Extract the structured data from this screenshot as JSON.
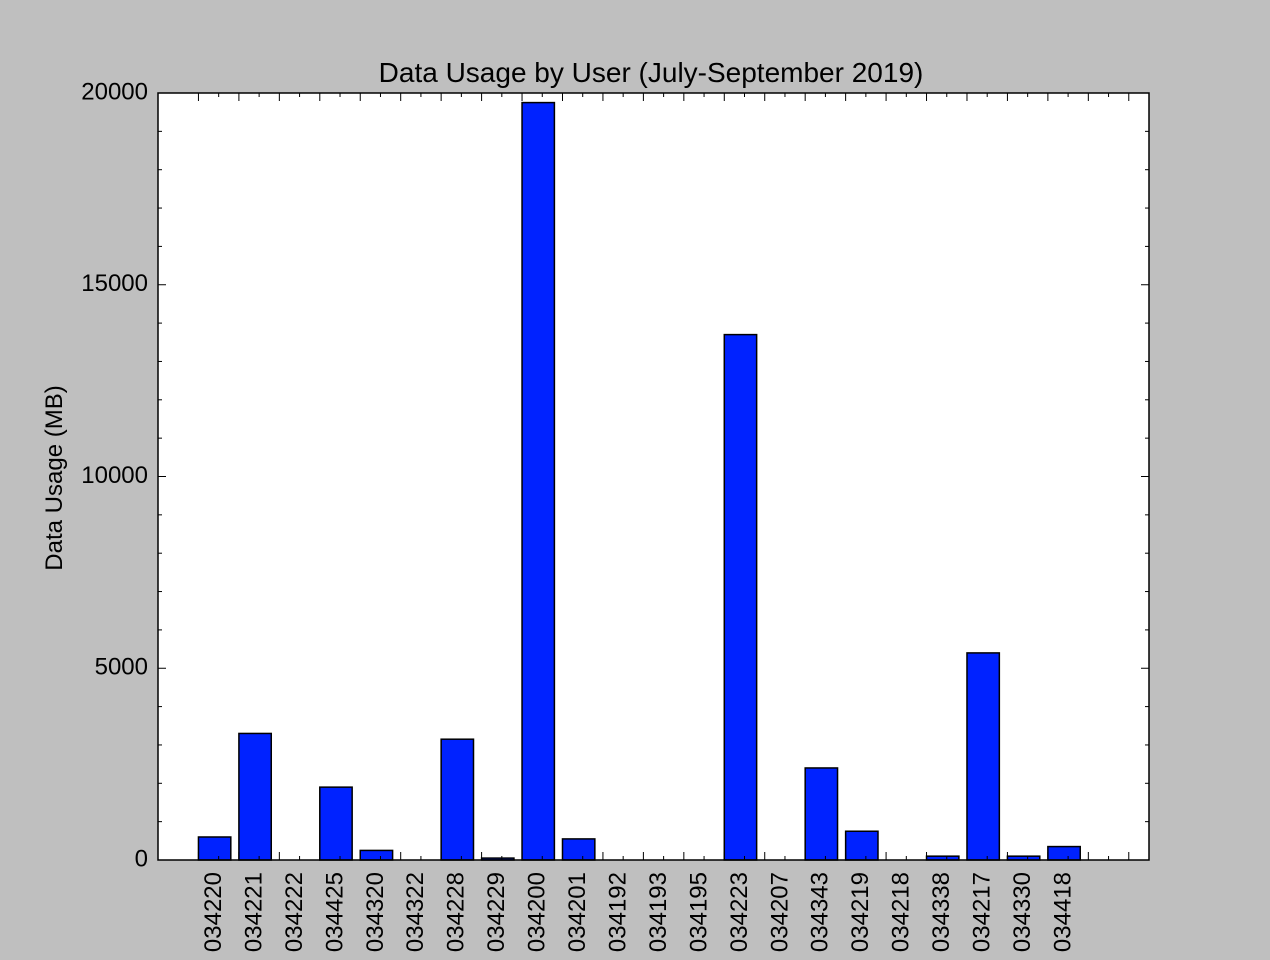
{
  "chart_data": {
    "type": "bar",
    "title": "Data Usage by User (July-September 2019)",
    "xlabel": "",
    "ylabel": "Data Usage (MB)",
    "ylim": [
      0,
      20000
    ],
    "xlim": [
      -1,
      23.5
    ],
    "yticks": [
      0,
      5000,
      10000,
      15000,
      20000
    ],
    "grid": false,
    "legend": "none",
    "bar_color": "#0022ff",
    "edge_color": "#000000",
    "background": "#bfbfbf",
    "plot_background": "#ffffff",
    "categories": [
      "034220",
      "034221",
      "034222",
      "034425",
      "034320",
      "034322",
      "034228",
      "034229",
      "034200",
      "034201",
      "034192",
      "034193",
      "034195",
      "034223",
      "034207",
      "034343",
      "034219",
      "034218",
      "034338",
      "034217",
      "034330",
      "034418"
    ],
    "values": [
      600,
      3300,
      0,
      1900,
      250,
      0,
      3150,
      50,
      19750,
      550,
      0,
      0,
      0,
      13700,
      0,
      2400,
      750,
      0,
      100,
      5400,
      100,
      350
    ]
  }
}
